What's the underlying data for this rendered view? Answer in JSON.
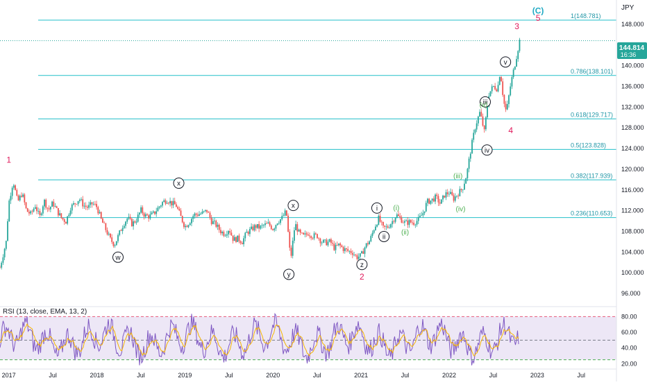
{
  "currency": "JPY",
  "price_tag": {
    "price": "144.814",
    "countdown": "16:36",
    "color": "#26a69a"
  },
  "chart_data": {
    "type": "line",
    "series": [
      {
        "values": [
          [
            2016.9,
            101.0
          ],
          [
            2016.97,
            106.0
          ],
          [
            2017.0,
            113.5
          ],
          [
            2017.05,
            117.8
          ],
          [
            2017.1,
            113.6
          ],
          [
            2017.15,
            115.4
          ],
          [
            2017.2,
            112.0
          ],
          [
            2017.25,
            111.3
          ],
          [
            2017.3,
            113.0
          ],
          [
            2017.35,
            110.7
          ],
          [
            2017.4,
            114.0
          ],
          [
            2017.45,
            112.1
          ],
          [
            2017.5,
            113.5
          ],
          [
            2017.55,
            111.9
          ],
          [
            2017.6,
            110.5
          ],
          [
            2017.65,
            109.9
          ],
          [
            2017.7,
            112.6
          ],
          [
            2017.75,
            113.4
          ],
          [
            2017.8,
            114.3
          ],
          [
            2017.85,
            113.0
          ],
          [
            2017.9,
            112.6
          ],
          [
            2017.95,
            113.4
          ],
          [
            2018.0,
            112.7
          ],
          [
            2018.05,
            110.2
          ],
          [
            2018.1,
            108.4
          ],
          [
            2018.15,
            106.5
          ],
          [
            2018.2,
            105.4
          ],
          [
            2018.25,
            107.4
          ],
          [
            2018.3,
            109.4
          ],
          [
            2018.35,
            110.6
          ],
          [
            2018.4,
            109.4
          ],
          [
            2018.45,
            110.3
          ],
          [
            2018.5,
            112.1
          ],
          [
            2018.55,
            111.0
          ],
          [
            2018.6,
            110.9
          ],
          [
            2018.65,
            111.5
          ],
          [
            2018.7,
            112.6
          ],
          [
            2018.75,
            113.7
          ],
          [
            2018.8,
            114.1
          ],
          [
            2018.85,
            113.4
          ],
          [
            2018.9,
            113.0
          ],
          [
            2018.95,
            110.9
          ],
          [
            2019.0,
            108.9
          ],
          [
            2019.05,
            109.8
          ],
          [
            2019.1,
            111.2
          ],
          [
            2019.15,
            111.3
          ],
          [
            2019.2,
            111.5
          ],
          [
            2019.25,
            112.0
          ],
          [
            2019.3,
            110.0
          ],
          [
            2019.35,
            109.3
          ],
          [
            2019.4,
            108.1
          ],
          [
            2019.45,
            107.5
          ],
          [
            2019.5,
            108.5
          ],
          [
            2019.55,
            106.4
          ],
          [
            2019.6,
            106.6
          ],
          [
            2019.65,
            106.0
          ],
          [
            2019.7,
            107.7
          ],
          [
            2019.75,
            108.3
          ],
          [
            2019.8,
            109.0
          ],
          [
            2019.85,
            108.7
          ],
          [
            2019.9,
            109.2
          ],
          [
            2019.95,
            109.4
          ],
          [
            2020.0,
            108.5
          ],
          [
            2020.05,
            109.9
          ],
          [
            2020.1,
            110.5
          ],
          [
            2020.15,
            111.9
          ],
          [
            2020.2,
            102.5
          ],
          [
            2020.25,
            109.5
          ],
          [
            2020.3,
            107.5
          ],
          [
            2020.35,
            107.0
          ],
          [
            2020.4,
            107.7
          ],
          [
            2020.45,
            107.1
          ],
          [
            2020.5,
            107.2
          ],
          [
            2020.55,
            106.0
          ],
          [
            2020.6,
            105.8
          ],
          [
            2020.65,
            106.0
          ],
          [
            2020.7,
            104.7
          ],
          [
            2020.75,
            105.4
          ],
          [
            2020.8,
            104.6
          ],
          [
            2020.85,
            104.2
          ],
          [
            2020.9,
            104.0
          ],
          [
            2020.95,
            103.0
          ],
          [
            2021.0,
            103.3
          ],
          [
            2021.05,
            105.2
          ],
          [
            2021.1,
            106.2
          ],
          [
            2021.15,
            108.7
          ],
          [
            2021.2,
            110.5
          ],
          [
            2021.25,
            108.6
          ],
          [
            2021.3,
            108.8
          ],
          [
            2021.35,
            109.8
          ],
          [
            2021.4,
            111.2
          ],
          [
            2021.45,
            110.4
          ],
          [
            2021.5,
            109.6
          ],
          [
            2021.55,
            109.8
          ],
          [
            2021.6,
            109.7
          ],
          [
            2021.65,
            110.2
          ],
          [
            2021.7,
            111.4
          ],
          [
            2021.75,
            113.7
          ],
          [
            2021.8,
            114.0
          ],
          [
            2021.85,
            114.6
          ],
          [
            2021.9,
            113.3
          ],
          [
            2021.95,
            115.1
          ],
          [
            2022.0,
            115.5
          ],
          [
            2022.05,
            114.3
          ],
          [
            2022.1,
            115.3
          ],
          [
            2022.15,
            116.2
          ],
          [
            2022.2,
            119.0
          ],
          [
            2022.25,
            124.2
          ],
          [
            2022.3,
            128.5
          ],
          [
            2022.35,
            131.0
          ],
          [
            2022.4,
            127.2
          ],
          [
            2022.45,
            134.5
          ],
          [
            2022.5,
            136.0
          ],
          [
            2022.55,
            135.5
          ],
          [
            2022.58,
            139.0
          ],
          [
            2022.62,
            133.0
          ],
          [
            2022.65,
            131.0
          ],
          [
            2022.7,
            136.5
          ],
          [
            2022.75,
            140.5
          ],
          [
            2022.8,
            144.8
          ]
        ]
      }
    ],
    "xlim": [
      2016.9,
      2023.9
    ],
    "ylim": [
      94,
      152
    ],
    "x_tick_labels": [
      {
        "x": 2017.0,
        "label": "2017"
      },
      {
        "x": 2017.5,
        "label": "Jul"
      },
      {
        "x": 2018.0,
        "label": "2018"
      },
      {
        "x": 2018.5,
        "label": "Jul"
      },
      {
        "x": 2019.0,
        "label": "2019"
      },
      {
        "x": 2019.5,
        "label": "Jul"
      },
      {
        "x": 2020.0,
        "label": "2020"
      },
      {
        "x": 2020.5,
        "label": "Jul"
      },
      {
        "x": 2021.0,
        "label": "2021"
      },
      {
        "x": 2021.5,
        "label": "Jul"
      },
      {
        "x": 2022.0,
        "label": "2022"
      },
      {
        "x": 2022.5,
        "label": "Jul"
      },
      {
        "x": 2023.0,
        "label": "2023"
      },
      {
        "x": 2023.5,
        "label": "Jul"
      }
    ],
    "y_tick_labels": [
      "96.000",
      "100.000",
      "104.000",
      "108.000",
      "112.000",
      "116.000",
      "120.000",
      "124.000",
      "128.000",
      "132.000",
      "136.000",
      "140.000",
      "148.000"
    ],
    "y_tick_values": [
      96,
      100,
      104,
      108,
      112,
      116,
      120,
      124,
      128,
      132,
      136,
      140,
      148
    ],
    "fib_levels": [
      {
        "label": "1(148.781)",
        "value": 148.781
      },
      {
        "label": "0.786(138.101)",
        "value": 138.101
      },
      {
        "label": "0.618(129.717)",
        "value": 129.717
      },
      {
        "label": "0.5(123.828)",
        "value": 123.828
      },
      {
        "label": "0.382(117.939)",
        "value": 117.939
      },
      {
        "label": "0.236(110.653)",
        "value": 110.653
      }
    ],
    "last_price_line": 144.814,
    "wave_labels": [
      {
        "text": "1",
        "x": 2017.0,
        "y": 121.8,
        "style": "red"
      },
      {
        "text": "2",
        "x": 2021.01,
        "y": 99.2,
        "style": "red"
      },
      {
        "text": "3",
        "x": 2022.77,
        "y": 147.6,
        "style": "red"
      },
      {
        "text": "4",
        "x": 2022.7,
        "y": 127.5,
        "style": "red"
      },
      {
        "text": "5",
        "x": 2023.01,
        "y": 149.2,
        "style": "red"
      },
      {
        "text": "(C)",
        "x": 2023.01,
        "y": 150.6,
        "style": "teal"
      },
      {
        "text": "w",
        "x": 2018.24,
        "y": 103.0,
        "style": "circle"
      },
      {
        "text": "x",
        "x": 2018.93,
        "y": 117.3,
        "style": "circle"
      },
      {
        "text": "y",
        "x": 2020.18,
        "y": 99.7,
        "style": "circle"
      },
      {
        "text": "x",
        "x": 2020.23,
        "y": 113.0,
        "style": "circle"
      },
      {
        "text": "z",
        "x": 2021.01,
        "y": 101.6,
        "style": "circle"
      },
      {
        "text": "i",
        "x": 2021.18,
        "y": 112.5,
        "style": "circle"
      },
      {
        "text": "ii",
        "x": 2021.26,
        "y": 107.0,
        "style": "circle"
      },
      {
        "text": "iii",
        "x": 2022.41,
        "y": 133.0,
        "style": "circle"
      },
      {
        "text": "iv",
        "x": 2022.43,
        "y": 123.7,
        "style": "circle"
      },
      {
        "text": "v",
        "x": 2022.64,
        "y": 140.7,
        "style": "circle"
      },
      {
        "text": "(i)",
        "x": 2021.4,
        "y": 112.6,
        "style": "green"
      },
      {
        "text": "(ii)",
        "x": 2021.5,
        "y": 107.9,
        "style": "green"
      },
      {
        "text": "(iii)",
        "x": 2022.1,
        "y": 118.8,
        "style": "green"
      },
      {
        "text": "(iv)",
        "x": 2022.13,
        "y": 112.4,
        "style": "green"
      },
      {
        "text": "(v)",
        "x": 2022.39,
        "y": 132.5,
        "style": "green"
      }
    ],
    "colors": {
      "fib_line": "#22bfc9",
      "fib_label": "#2196a6",
      "red_label": "#e0185a",
      "teal_label": "#20a9c3",
      "green_label": "#4caf50",
      "candle_up": "#26a69a",
      "candle_down": "#ef5350",
      "rsi_line": "#7e57c2",
      "rsi_ma": "#f4b400",
      "rsi_band": "#ede7f6",
      "rsi_upper_dash": "#e85a7a",
      "rsi_lower_dash": "#4caf50",
      "axis_text": "#131722"
    }
  },
  "rsi_panel": {
    "title": "RSI (13, close, EMA, 13, 2)",
    "ylim": [
      15,
      90
    ],
    "levels": [
      80,
      50,
      25
    ],
    "y_tick_labels": [
      "80.00",
      "60.00",
      "40.00",
      "20.00"
    ],
    "y_tick_values": [
      80,
      60,
      40,
      20
    ]
  }
}
